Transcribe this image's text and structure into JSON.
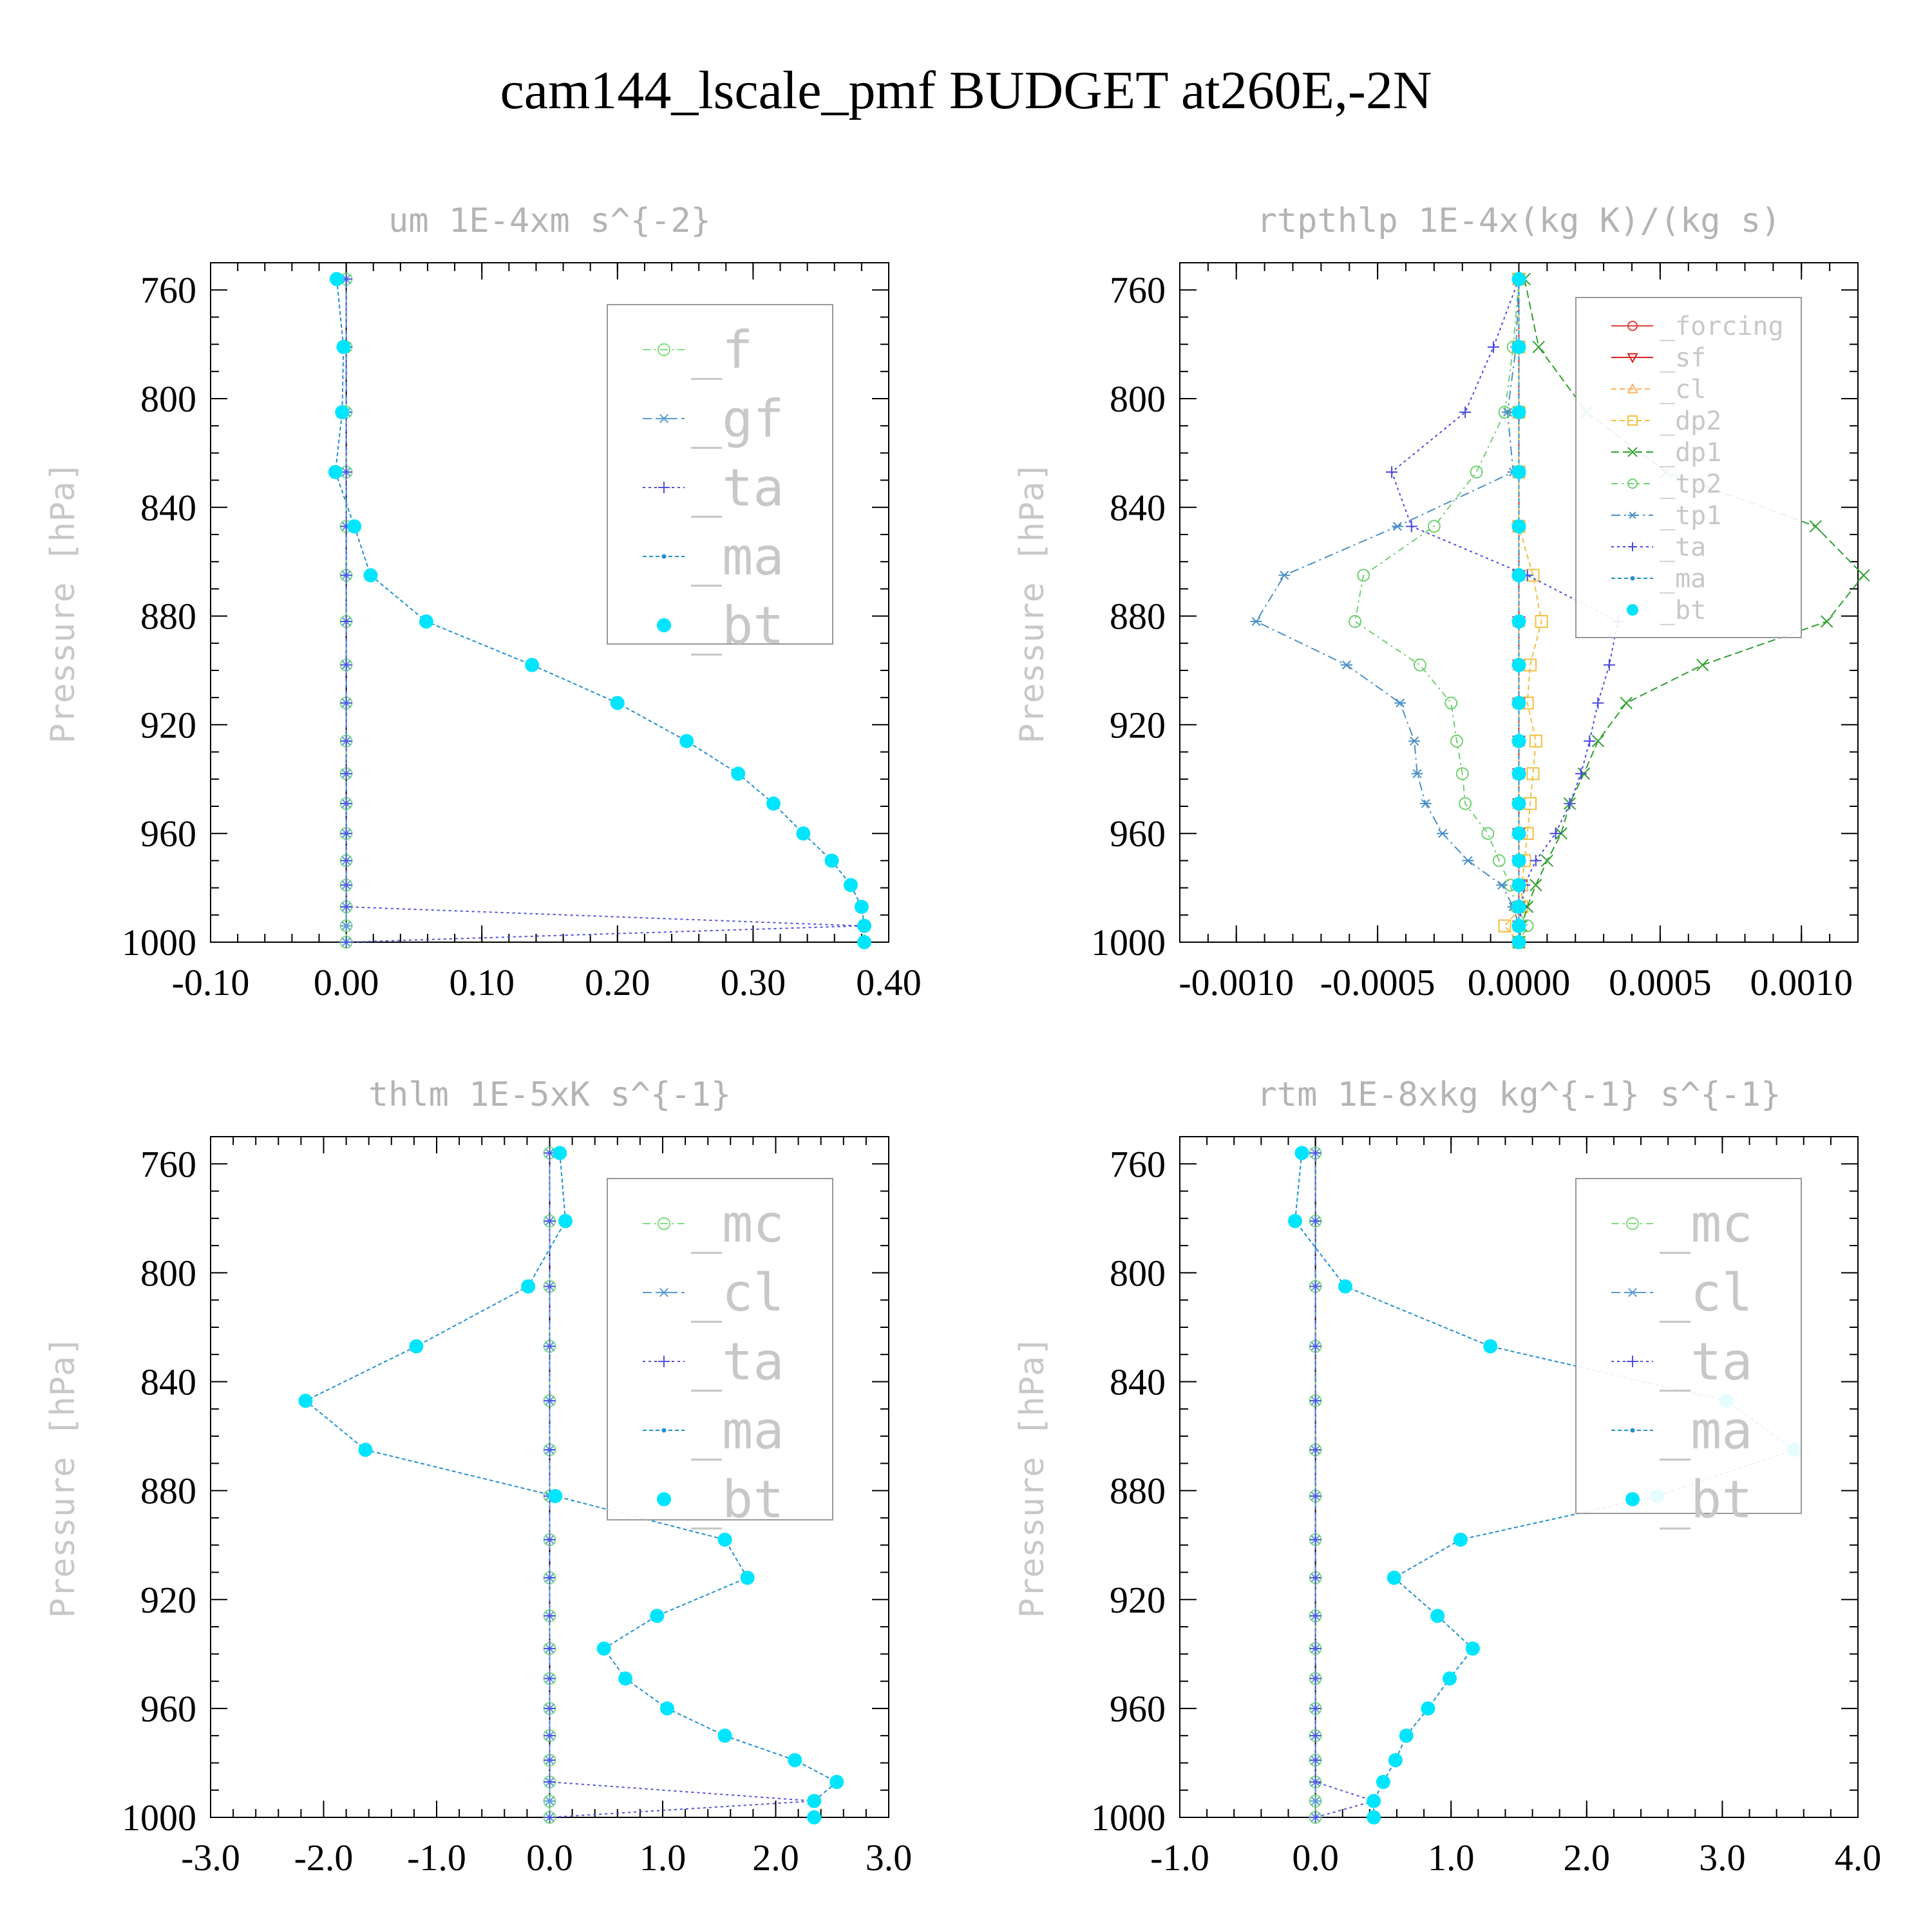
{
  "figure_title": "cam144_lscale_pmf  BUDGET at260E,-2N",
  "chart_data": [
    {
      "type": "line",
      "title": "um  1E-4xm s^{-2}",
      "ylabel": "Pressure [hPa]",
      "xlim": [
        -0.1,
        0.4
      ],
      "ylim": [
        1000,
        750
      ],
      "xticks": [
        -0.1,
        0.0,
        0.1,
        0.2,
        0.3,
        0.4
      ],
      "xtick_labels": [
        "-0.10",
        "0.00",
        "0.10",
        "0.20",
        "0.30",
        "0.40"
      ],
      "yticks": [
        760,
        800,
        840,
        880,
        920,
        960,
        1000
      ],
      "legend_position": "top-right",
      "levels": [
        756,
        781,
        805,
        827,
        847,
        865,
        882,
        898,
        912,
        926,
        938,
        949,
        960,
        970,
        979,
        987,
        994,
        1000
      ],
      "series": [
        {
          "name": "_f",
          "color": "#7ee07e",
          "marker": "circle-open",
          "dash": "12,6,3,6",
          "values": [
            0,
            0,
            0,
            0,
            0,
            0,
            0,
            0,
            0,
            0,
            0,
            0,
            0,
            0,
            0,
            0,
            0,
            0
          ]
        },
        {
          "name": "_gf",
          "color": "#5a9bd5",
          "marker": "asterisk",
          "dash": "14,6",
          "values": [
            0,
            0,
            0,
            0,
            0,
            0,
            0,
            0,
            0,
            0,
            0,
            0,
            0,
            0,
            0,
            0,
            0,
            0
          ]
        },
        {
          "name": "_ta",
          "color": "#5050e0",
          "marker": "plus",
          "dash": "4,5",
          "values": [
            0,
            0,
            0,
            0,
            0,
            0,
            0,
            0,
            0,
            0,
            0,
            0,
            0,
            0,
            0,
            0,
            0.38,
            0
          ]
        },
        {
          "name": "_ma",
          "color": "#2090d0",
          "marker": "dot",
          "dash": "6,4",
          "values": [
            -0.007,
            -0.002,
            -0.003,
            -0.008,
            0.006,
            0.018,
            0.059,
            0.137,
            0.2,
            0.251,
            0.289,
            0.315,
            0.337,
            0.358,
            0.372,
            0.38,
            0.382,
            0.382
          ]
        },
        {
          "name": "_bt",
          "color": "#00e5ff",
          "marker": "filled",
          "dash": "",
          "values": [
            -0.007,
            -0.002,
            -0.003,
            -0.008,
            0.006,
            0.018,
            0.059,
            0.137,
            0.2,
            0.251,
            0.289,
            0.315,
            0.337,
            0.358,
            0.372,
            0.38,
            0.382,
            0.382
          ]
        }
      ]
    },
    {
      "type": "line",
      "title": "rtpthlp  1E-4x(kg K)/(kg s)",
      "ylabel": "Pressure [hPa]",
      "xlim": [
        -0.0012,
        0.0012
      ],
      "ylim": [
        1000,
        750
      ],
      "xticks": [
        -0.001,
        -0.0005,
        0.0,
        0.0005,
        0.001
      ],
      "xtick_labels": [
        "-0.0010",
        "-0.0005",
        "0.0000",
        "0.0005",
        "0.0010"
      ],
      "yticks": [
        760,
        800,
        840,
        880,
        920,
        960,
        1000
      ],
      "legend_position": "top-right",
      "levels": [
        756,
        781,
        805,
        827,
        847,
        865,
        882,
        898,
        912,
        926,
        938,
        949,
        960,
        970,
        979,
        987,
        994,
        1000
      ],
      "series": [
        {
          "name": "_forcing",
          "color": "#e04040",
          "marker": "circle-open",
          "dash": "",
          "values": [
            0,
            0,
            0,
            0,
            0,
            0,
            0,
            0,
            0,
            0,
            0,
            0,
            0,
            0,
            0,
            0,
            0,
            0
          ]
        },
        {
          "name": "_sf",
          "color": "#e02020",
          "marker": "triangle-down",
          "dash": "",
          "values": [
            0,
            0,
            0,
            0,
            0,
            0,
            0,
            0,
            0,
            0,
            0,
            0,
            0,
            0,
            0,
            0,
            0,
            0
          ]
        },
        {
          "name": "_cl",
          "color": "#ffb060",
          "marker": "triangle-up",
          "dash": "8,5",
          "values": [
            0,
            0,
            0,
            0,
            0,
            0,
            0,
            0,
            0,
            0,
            0,
            0,
            0,
            0,
            0,
            0,
            0,
            0
          ]
        },
        {
          "name": "_dp2",
          "color": "#f0c040",
          "marker": "square-open",
          "dash": "8,5",
          "values": [
            0,
            0,
            0,
            0,
            0,
            5e-05,
            8e-05,
            4e-05,
            3e-05,
            6e-05,
            5e-05,
            4e-05,
            3e-05,
            2e-05,
            1e-05,
            1e-05,
            -5e-05,
            0
          ]
        },
        {
          "name": "_dp1",
          "color": "#30a030",
          "marker": "x",
          "dash": "12,6",
          "values": [
            2e-05,
            7e-05,
            0.00024,
            0.00052,
            0.00105,
            0.00122,
            0.00109,
            0.00065,
            0.00038,
            0.00028,
            0.00023,
            0.00018,
            0.00015,
            0.0001,
            6e-05,
            3e-05,
            1e-05,
            0
          ]
        },
        {
          "name": "_tp2",
          "color": "#70d070",
          "marker": "circle-open",
          "dash": "10,6,3,6",
          "values": [
            0,
            -2e-05,
            -5e-05,
            -0.00015,
            -0.0003,
            -0.00055,
            -0.00058,
            -0.00035,
            -0.00024,
            -0.00022,
            -0.0002,
            -0.00019,
            -0.00011,
            -7e-05,
            -3e-05,
            -1e-05,
            3e-05,
            0
          ]
        },
        {
          "name": "_tp1",
          "color": "#4a90c8",
          "marker": "asterisk",
          "dash": "14,6,3,6",
          "values": [
            0,
            -1e-05,
            -4e-05,
            -2e-05,
            -0.00043,
            -0.00083,
            -0.00093,
            -0.00061,
            -0.00042,
            -0.00037,
            -0.00036,
            -0.00033,
            -0.00027,
            -0.00018,
            -6e-05,
            -2e-05,
            0,
            0
          ]
        },
        {
          "name": "_ta",
          "color": "#4848e0",
          "marker": "plus",
          "dash": "4,5",
          "values": [
            0,
            -9e-05,
            -0.00019,
            -0.00045,
            -0.00038,
            3e-05,
            0.00035,
            0.00032,
            0.00028,
            0.00025,
            0.00022,
            0.00018,
            0.00013,
            6e-05,
            2e-05,
            1e-05,
            0,
            0
          ]
        },
        {
          "name": "_ma",
          "color": "#2090d0",
          "marker": "dot",
          "dash": "6,4",
          "values": [
            0,
            0,
            0,
            0,
            0,
            0,
            0,
            0,
            0,
            0,
            0,
            0,
            0,
            0,
            0,
            0,
            0,
            0
          ]
        },
        {
          "name": "_bt",
          "color": "#00e5ff",
          "marker": "filled",
          "dash": "",
          "values": [
            0,
            0,
            0,
            0,
            0,
            0,
            0,
            0,
            0,
            0,
            0,
            0,
            0,
            0,
            0,
            0,
            0,
            0
          ]
        }
      ]
    },
    {
      "type": "line",
      "title": "thlm  1E-5xK s^{-1}",
      "ylabel": "Pressure [hPa]",
      "xlim": [
        -3.0,
        3.0
      ],
      "ylim": [
        1000,
        750
      ],
      "xticks": [
        -3.0,
        -2.0,
        -1.0,
        0.0,
        1.0,
        2.0,
        3.0
      ],
      "xtick_labels": [
        "-3.0",
        "-2.0",
        "-1.0",
        "0.0",
        "1.0",
        "2.0",
        "3.0"
      ],
      "yticks": [
        760,
        800,
        840,
        880,
        920,
        960,
        1000
      ],
      "legend_position": "top-right",
      "levels": [
        756,
        781,
        805,
        827,
        847,
        865,
        882,
        898,
        912,
        926,
        938,
        949,
        960,
        970,
        979,
        987,
        994,
        1000
      ],
      "series": [
        {
          "name": "_mc",
          "color": "#7ee07e",
          "marker": "circle-open",
          "dash": "12,6,3,6",
          "values": [
            0,
            0,
            0,
            0,
            0,
            0,
            0,
            0,
            0,
            0,
            0,
            0,
            0,
            0,
            0,
            0,
            0,
            0
          ]
        },
        {
          "name": "_cl",
          "color": "#5a9bd5",
          "marker": "asterisk",
          "dash": "14,6",
          "values": [
            0,
            0,
            0,
            0,
            0,
            0,
            0,
            0,
            0,
            0,
            0,
            0,
            0,
            0,
            0,
            0,
            0,
            0
          ]
        },
        {
          "name": "_ta",
          "color": "#5050e0",
          "marker": "plus",
          "dash": "4,5",
          "values": [
            0,
            0,
            0,
            0,
            0,
            0,
            0,
            0,
            0,
            0,
            0,
            0,
            0,
            0,
            0,
            0,
            2.34,
            0
          ]
        },
        {
          "name": "_ma",
          "color": "#2090d0",
          "marker": "dot",
          "dash": "6,4",
          "values": [
            0.09,
            0.14,
            -0.19,
            -1.18,
            -2.16,
            -1.63,
            0.05,
            1.55,
            1.75,
            0.95,
            0.48,
            0.67,
            1.04,
            1.55,
            2.17,
            2.54,
            2.34,
            2.34
          ]
        },
        {
          "name": "_bt",
          "color": "#00e5ff",
          "marker": "filled",
          "dash": "",
          "values": [
            0.09,
            0.14,
            -0.19,
            -1.18,
            -2.16,
            -1.63,
            0.05,
            1.55,
            1.75,
            0.95,
            0.48,
            0.67,
            1.04,
            1.55,
            2.17,
            2.54,
            2.34,
            2.34
          ]
        }
      ]
    },
    {
      "type": "line",
      "title": "rtm  1E-8xkg kg^{-1} s^{-1}",
      "ylabel": "Pressure [hPa]",
      "xlim": [
        -1.0,
        4.0
      ],
      "ylim": [
        1000,
        750
      ],
      "xticks": [
        -1.0,
        0.0,
        1.0,
        2.0,
        3.0,
        4.0
      ],
      "xtick_labels": [
        "-1.0",
        "0.0",
        "1.0",
        "2.0",
        "3.0",
        "4.0"
      ],
      "yticks": [
        760,
        800,
        840,
        880,
        920,
        960,
        1000
      ],
      "legend_position": "top-right",
      "levels": [
        756,
        781,
        805,
        827,
        847,
        865,
        882,
        898,
        912,
        926,
        938,
        949,
        960,
        970,
        979,
        987,
        994,
        1000
      ],
      "series": [
        {
          "name": "_mc",
          "color": "#7ee07e",
          "marker": "circle-open",
          "dash": "12,6,3,6",
          "values": [
            0,
            0,
            0,
            0,
            0,
            0,
            0,
            0,
            0,
            0,
            0,
            0,
            0,
            0,
            0,
            0,
            0,
            0
          ]
        },
        {
          "name": "_cl",
          "color": "#5a9bd5",
          "marker": "asterisk",
          "dash": "14,6",
          "values": [
            0,
            0,
            0,
            0,
            0,
            0,
            0,
            0,
            0,
            0,
            0,
            0,
            0,
            0,
            0,
            0,
            0,
            0
          ]
        },
        {
          "name": "_ta",
          "color": "#5050e0",
          "marker": "plus",
          "dash": "4,5",
          "values": [
            0,
            0,
            0,
            0,
            0,
            0,
            0,
            0,
            0,
            0,
            0,
            0,
            0,
            0,
            0,
            0,
            0.43,
            0
          ]
        },
        {
          "name": "_ma",
          "color": "#2090d0",
          "marker": "dot",
          "dash": "6,4",
          "values": [
            -0.1,
            -0.15,
            0.22,
            1.29,
            3.03,
            3.53,
            2.52,
            1.07,
            0.58,
            0.9,
            1.16,
            0.99,
            0.83,
            0.67,
            0.59,
            0.5,
            0.43,
            0.43
          ]
        },
        {
          "name": "_bt",
          "color": "#00e5ff",
          "marker": "filled",
          "dash": "",
          "values": [
            -0.1,
            -0.15,
            0.22,
            1.29,
            3.03,
            3.53,
            2.52,
            1.07,
            0.58,
            0.9,
            1.16,
            0.99,
            0.83,
            0.67,
            0.59,
            0.5,
            0.43,
            0.43
          ]
        }
      ]
    }
  ]
}
